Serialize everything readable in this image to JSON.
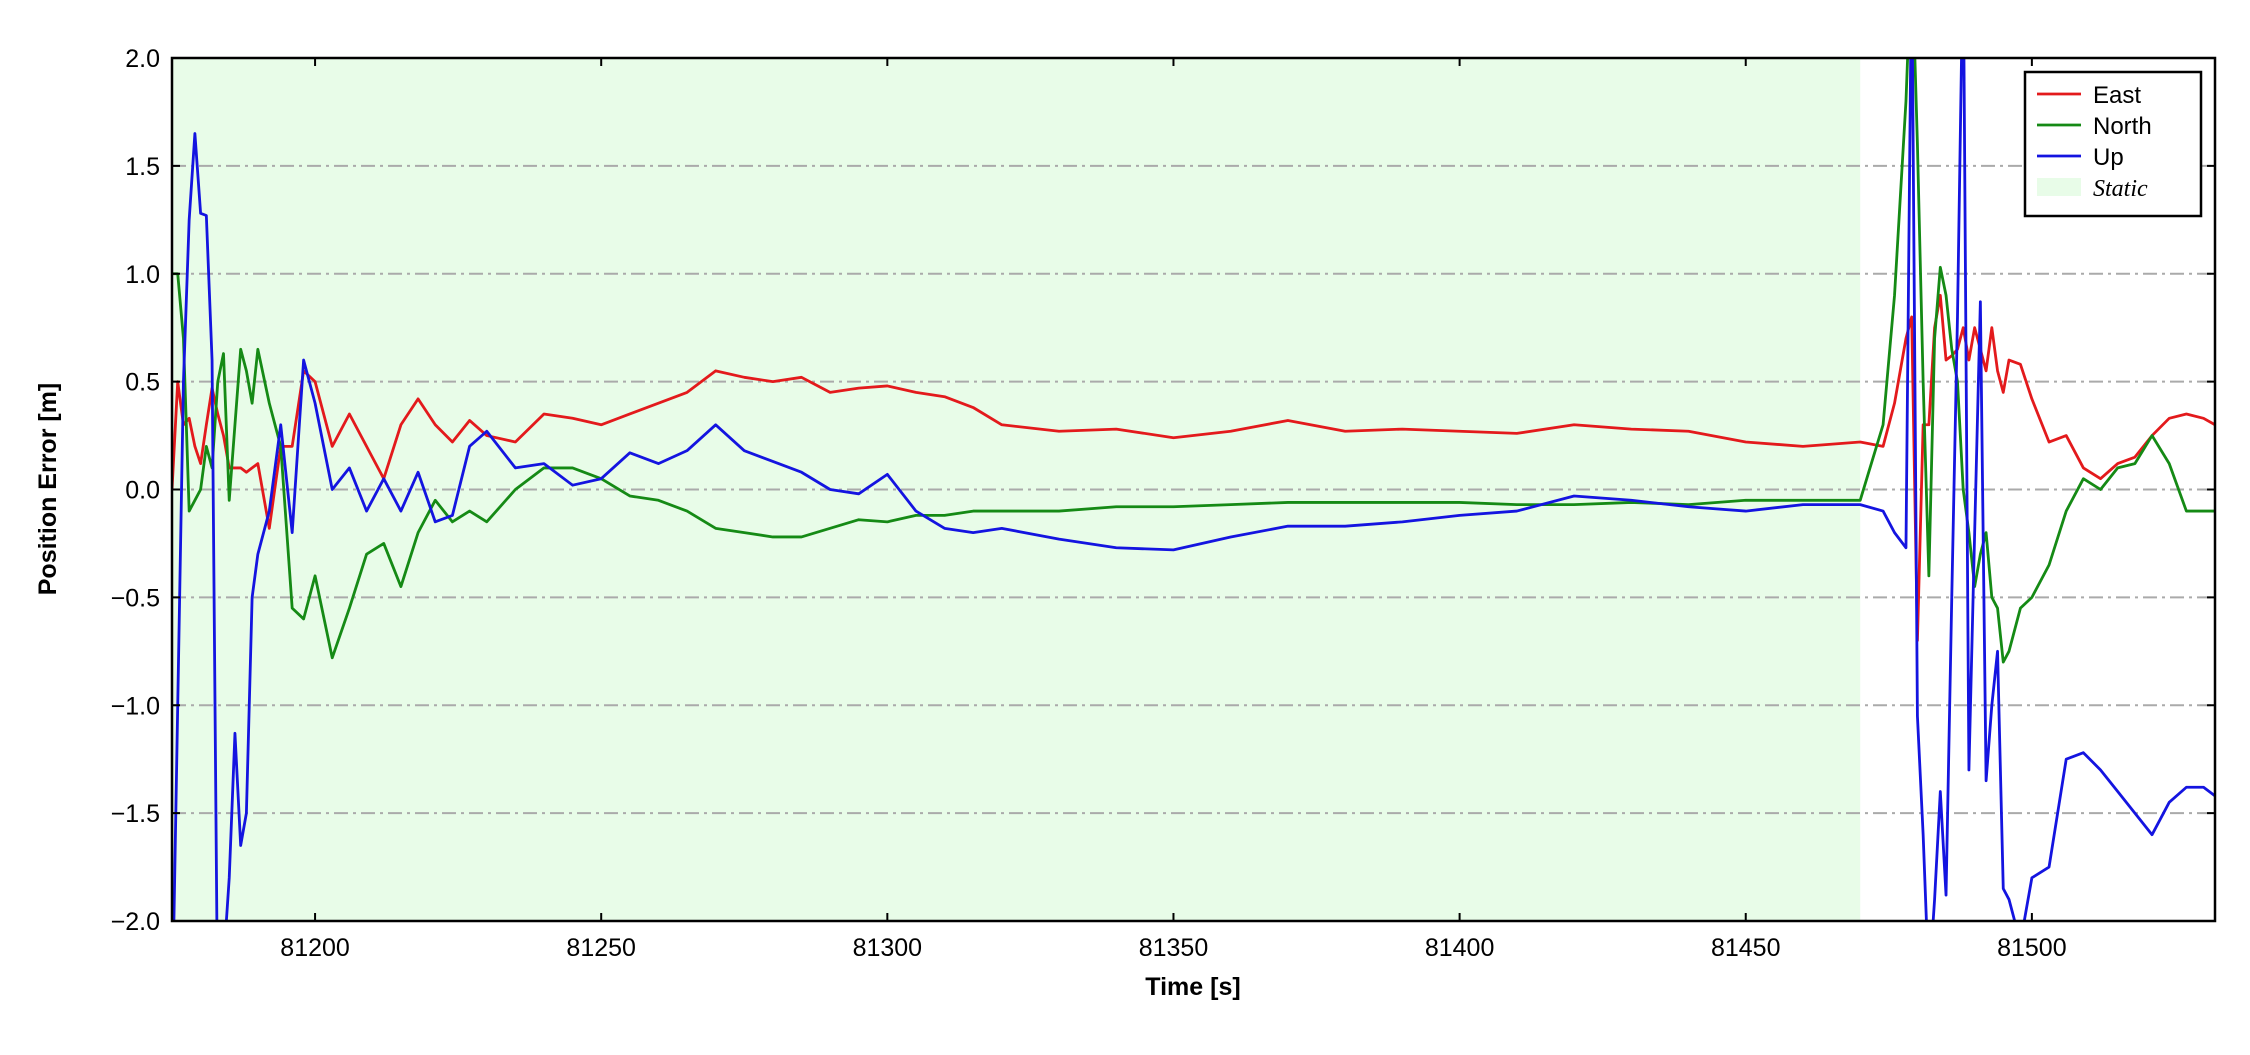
{
  "chart_data": {
    "type": "line",
    "xlabel": "Time [s]",
    "ylabel": "Position Error [m]",
    "xlim": [
      81175,
      81532
    ],
    "ylim": [
      -2,
      2
    ],
    "xticks": [
      81200,
      81250,
      81300,
      81350,
      81400,
      81450,
      81500
    ],
    "yticks": [
      {
        "value": -2,
        "label": "−2.0"
      },
      {
        "value": -1.5,
        "label": "−1.5"
      },
      {
        "value": -1,
        "label": "−1.0"
      },
      {
        "value": -0.5,
        "label": "−0.5"
      },
      {
        "value": 0,
        "label": "0.0"
      },
      {
        "value": 0.5,
        "label": "0.5"
      },
      {
        "value": 1,
        "label": "1.0"
      },
      {
        "value": 1.5,
        "label": "1.5"
      },
      {
        "value": 2,
        "label": "2.0"
      }
    ],
    "grid": true,
    "legend": "upper right",
    "span": {
      "name": "Static",
      "color": "#e8fce8",
      "x": [
        81175,
        81470
      ]
    },
    "x": [
      81175,
      81176,
      81177,
      81178,
      81179,
      81180,
      81181,
      81182,
      81183,
      81184,
      81185,
      81186,
      81187,
      81188,
      81189,
      81190,
      81192,
      81194,
      81196,
      81198,
      81200,
      81203,
      81206,
      81209,
      81212,
      81215,
      81218,
      81221,
      81224,
      81227,
      81230,
      81235,
      81240,
      81245,
      81250,
      81255,
      81260,
      81265,
      81270,
      81275,
      81280,
      81285,
      81290,
      81295,
      81300,
      81305,
      81310,
      81315,
      81320,
      81330,
      81340,
      81350,
      81360,
      81370,
      81380,
      81390,
      81400,
      81410,
      81420,
      81430,
      81440,
      81450,
      81460,
      81470,
      81474,
      81476,
      81478,
      81479,
      81480,
      81481,
      81482,
      81483,
      81484,
      81485,
      81486,
      81487,
      81488,
      81489,
      81490,
      81491,
      81492,
      81493,
      81494,
      81495,
      81496,
      81498,
      81500,
      81503,
      81506,
      81509,
      81512,
      81515,
      81518,
      81521,
      81524,
      81527,
      81530,
      81532
    ],
    "series": [
      {
        "name": "East",
        "color": "#e31a1c",
        "values": [
          0.0,
          0.5,
          0.3,
          0.33,
          0.2,
          0.12,
          0.3,
          0.47,
          0.35,
          0.25,
          0.1,
          0.1,
          0.1,
          0.08,
          0.1,
          0.12,
          -0.18,
          0.2,
          0.2,
          0.55,
          0.5,
          0.2,
          0.35,
          0.2,
          0.05,
          0.3,
          0.42,
          0.3,
          0.22,
          0.32,
          0.25,
          0.22,
          0.35,
          0.33,
          0.3,
          0.35,
          0.4,
          0.45,
          0.55,
          0.52,
          0.5,
          0.52,
          0.45,
          0.47,
          0.48,
          0.45,
          0.43,
          0.38,
          0.3,
          0.27,
          0.28,
          0.24,
          0.27,
          0.32,
          0.27,
          0.28,
          0.27,
          0.26,
          0.3,
          0.28,
          0.27,
          0.22,
          0.2,
          0.22,
          0.2,
          0.4,
          0.7,
          0.8,
          -0.7,
          0.3,
          0.3,
          0.75,
          0.9,
          0.6,
          0.62,
          0.65,
          0.75,
          0.6,
          0.75,
          0.65,
          0.55,
          0.75,
          0.55,
          0.45,
          0.6,
          0.58,
          0.42,
          0.22,
          0.25,
          0.1,
          0.05,
          0.12,
          0.15,
          0.25,
          0.33,
          0.35,
          0.33,
          0.3
        ]
      },
      {
        "name": "North",
        "color": "#158a15",
        "values": [
          1.0,
          1.0,
          0.7,
          -0.1,
          -0.05,
          0.0,
          0.2,
          0.1,
          0.5,
          0.63,
          -0.05,
          0.3,
          0.65,
          0.55,
          0.4,
          0.65,
          0.4,
          0.2,
          -0.55,
          -0.6,
          -0.4,
          -0.78,
          -0.55,
          -0.3,
          -0.25,
          -0.45,
          -0.2,
          -0.05,
          -0.15,
          -0.1,
          -0.15,
          0.0,
          0.1,
          0.1,
          0.05,
          -0.03,
          -0.05,
          -0.1,
          -0.18,
          -0.2,
          -0.22,
          -0.22,
          -0.18,
          -0.14,
          -0.15,
          -0.12,
          -0.12,
          -0.1,
          -0.1,
          -0.1,
          -0.08,
          -0.08,
          -0.07,
          -0.06,
          -0.06,
          -0.06,
          -0.06,
          -0.07,
          -0.07,
          -0.06,
          -0.07,
          -0.05,
          -0.05,
          -0.05,
          0.3,
          0.9,
          1.8,
          2.5,
          1.6,
          0.5,
          -0.4,
          0.7,
          1.03,
          0.9,
          0.65,
          0.5,
          0.0,
          -0.2,
          -0.45,
          -0.3,
          -0.2,
          -0.5,
          -0.55,
          -0.8,
          -0.75,
          -0.55,
          -0.5,
          -0.35,
          -0.1,
          0.05,
          0.0,
          0.1,
          0.12,
          0.25,
          0.12,
          -0.1,
          -0.1,
          -0.1
        ]
      },
      {
        "name": "Up",
        "color": "#1414e0",
        "values": [
          -2.5,
          -1.0,
          0.5,
          1.25,
          1.65,
          1.28,
          1.27,
          0.6,
          -2.5,
          -2.2,
          -1.8,
          -1.13,
          -1.65,
          -1.5,
          -0.5,
          -0.3,
          -0.1,
          0.3,
          -0.2,
          0.6,
          0.4,
          0.0,
          0.1,
          -0.1,
          0.05,
          -0.1,
          0.08,
          -0.15,
          -0.12,
          0.2,
          0.27,
          0.1,
          0.12,
          0.02,
          0.05,
          0.17,
          0.12,
          0.18,
          0.3,
          0.18,
          0.13,
          0.08,
          0.0,
          -0.02,
          0.07,
          -0.1,
          -0.18,
          -0.2,
          -0.18,
          -0.23,
          -0.27,
          -0.28,
          -0.22,
          -0.17,
          -0.17,
          -0.15,
          -0.12,
          -0.1,
          -0.03,
          -0.05,
          -0.08,
          -0.1,
          -0.07,
          -0.07,
          -0.1,
          -0.2,
          -0.27,
          2.5,
          -1.05,
          -1.6,
          -2.3,
          -1.9,
          -1.4,
          -1.88,
          -0.5,
          0.8,
          2.5,
          -1.3,
          -0.2,
          0.87,
          -1.35,
          -1.0,
          -0.75,
          -1.85,
          -1.9,
          -2.1,
          -1.8,
          -1.75,
          -1.25,
          -1.22,
          -1.3,
          -1.4,
          -1.5,
          -1.6,
          -1.45,
          -1.38,
          -1.38,
          -1.42
        ]
      }
    ]
  }
}
